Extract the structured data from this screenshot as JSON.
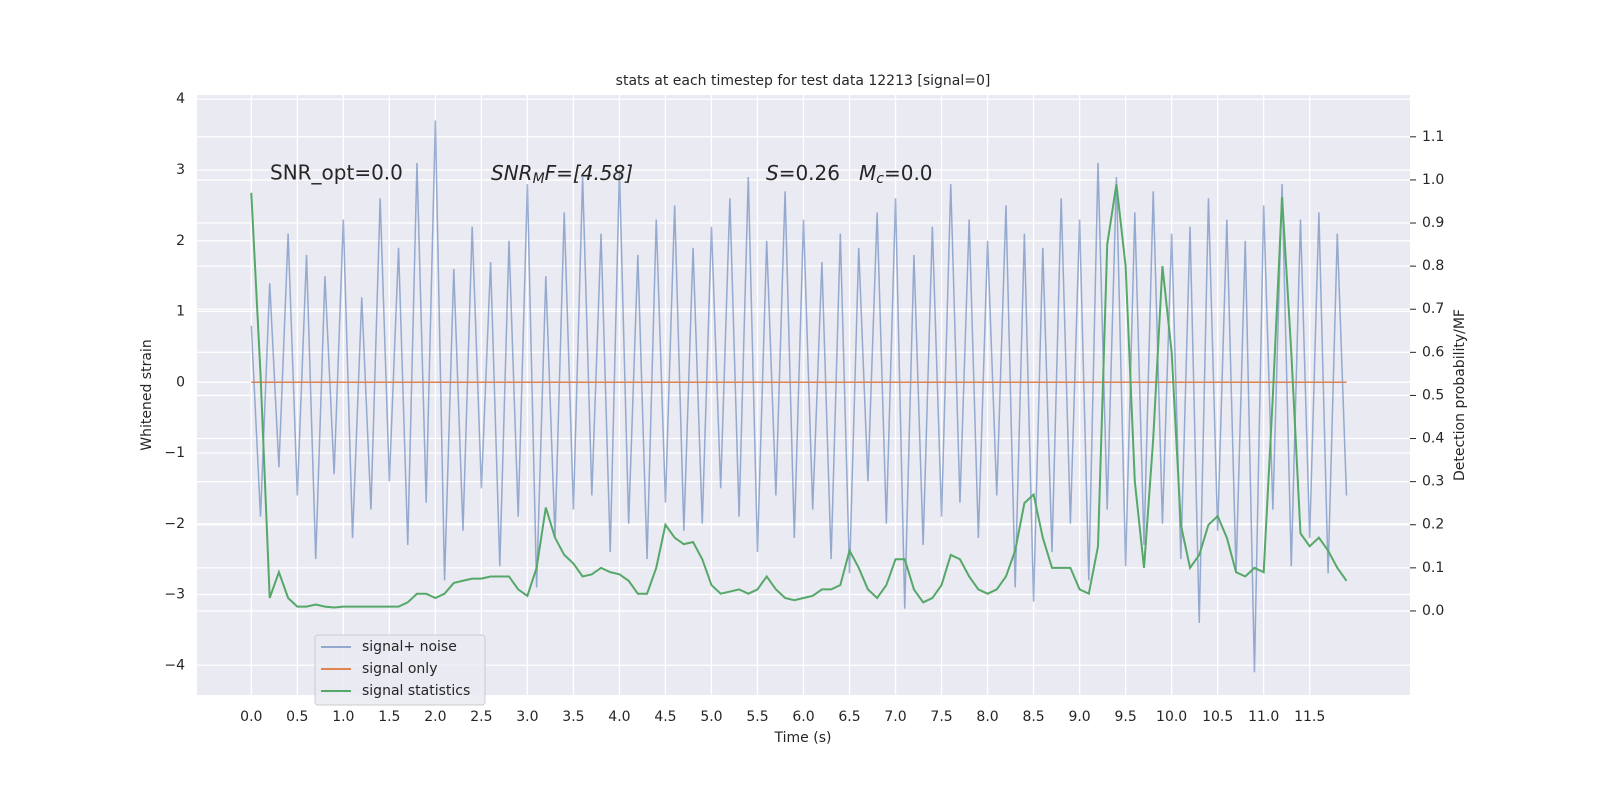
{
  "chart_data": {
    "type": "line",
    "title": "stats at each timestep for test data 12213 [signal=0]",
    "xlabel": "Time (s)",
    "ylabel": "Whitened strain",
    "y2label": "Detection probability/MF",
    "annotations": {
      "snr_opt": "SNR_opt=0.0",
      "snr_mf": [
        "SNR",
        "M",
        "F=[4.58]"
      ],
      "s": [
        "S",
        "=0.26"
      ],
      "mc": [
        "M",
        "c",
        "=0.0"
      ]
    },
    "x": [
      0.0,
      0.1,
      0.2,
      0.3,
      0.4,
      0.5,
      0.6,
      0.7,
      0.8,
      0.9,
      1.0,
      1.1,
      1.2,
      1.3,
      1.4,
      1.5,
      1.6,
      1.7,
      1.8,
      1.9,
      2.0,
      2.1,
      2.2,
      2.3,
      2.4,
      2.5,
      2.6,
      2.7,
      2.8,
      2.9,
      3.0,
      3.1,
      3.2,
      3.3,
      3.4,
      3.5,
      3.6,
      3.7,
      3.8,
      3.9,
      4.0,
      4.1,
      4.2,
      4.3,
      4.4,
      4.5,
      4.6,
      4.7,
      4.8,
      4.9,
      5.0,
      5.1,
      5.2,
      5.3,
      5.4,
      5.5,
      5.6,
      5.7,
      5.8,
      5.9,
      6.0,
      6.1,
      6.2,
      6.3,
      6.4,
      6.5,
      6.6,
      6.7,
      6.8,
      6.9,
      7.0,
      7.1,
      7.2,
      7.3,
      7.4,
      7.5,
      7.6,
      7.7,
      7.8,
      7.9,
      8.0,
      8.1,
      8.2,
      8.3,
      8.4,
      8.5,
      8.6,
      8.7,
      8.8,
      8.9,
      9.0,
      9.1,
      9.2,
      9.3,
      9.4,
      9.5,
      9.6,
      9.7,
      9.8,
      9.9,
      10.0,
      10.1,
      10.2,
      10.3,
      10.4,
      10.5,
      10.6,
      10.7,
      10.8,
      10.9,
      11.0,
      11.1,
      11.2,
      11.3,
      11.4,
      11.5,
      11.6,
      11.7,
      11.8,
      11.9
    ],
    "series": [
      {
        "name": "signal+ noise",
        "color": "#4c72b0",
        "values": [
          0.8,
          -1.9,
          1.4,
          -1.2,
          2.1,
          -1.6,
          1.8,
          -2.5,
          1.5,
          -1.3,
          2.3,
          -2.2,
          1.2,
          -1.8,
          2.6,
          -1.4,
          1.9,
          -2.3,
          3.1,
          -1.7,
          3.7,
          -2.8,
          1.6,
          -2.1,
          2.2,
          -1.5,
          1.7,
          -2.6,
          2.0,
          -1.9,
          2.8,
          -2.9,
          1.5,
          -2.2,
          2.4,
          -1.8,
          2.9,
          -1.6,
          2.1,
          -2.4,
          3.0,
          -2.0,
          1.8,
          -2.5,
          2.3,
          -1.7,
          2.5,
          -2.1,
          1.9,
          -2.0,
          2.2,
          -1.5,
          2.6,
          -1.9,
          2.9,
          -2.4,
          2.0,
          -1.6,
          2.7,
          -2.2,
          2.3,
          -1.8,
          1.7,
          -2.5,
          2.1,
          -2.7,
          1.9,
          -1.4,
          2.4,
          -2.0,
          2.6,
          -3.2,
          1.8,
          -2.3,
          2.2,
          -1.9,
          2.8,
          -1.7,
          2.3,
          -2.2,
          2.0,
          -1.6,
          2.5,
          -2.9,
          2.1,
          -3.1,
          1.9,
          -2.4,
          2.6,
          -2.0,
          2.3,
          -2.8,
          3.1,
          -1.8,
          2.9,
          -2.6,
          2.4,
          -2.3,
          2.7,
          -2.0,
          2.1,
          -2.5,
          2.2,
          -3.4,
          2.6,
          -2.1,
          2.3,
          -2.7,
          2.0,
          -4.1,
          2.5,
          -1.8,
          2.8,
          -2.6,
          2.3,
          -2.2,
          2.4,
          -2.7,
          2.1,
          -1.6
        ]
      },
      {
        "name": "signal only",
        "color": "#dd8452",
        "values": [
          0,
          0,
          0,
          0,
          0,
          0,
          0,
          0,
          0,
          0,
          0,
          0,
          0,
          0,
          0,
          0,
          0,
          0,
          0,
          0,
          0,
          0,
          0,
          0,
          0,
          0,
          0,
          0,
          0,
          0,
          0,
          0,
          0,
          0,
          0,
          0,
          0,
          0,
          0,
          0,
          0,
          0,
          0,
          0,
          0,
          0,
          0,
          0,
          0,
          0,
          0,
          0,
          0,
          0,
          0,
          0,
          0,
          0,
          0,
          0,
          0,
          0,
          0,
          0,
          0,
          0,
          0,
          0,
          0,
          0,
          0,
          0,
          0,
          0,
          0,
          0,
          0,
          0,
          0,
          0,
          0,
          0,
          0,
          0,
          0,
          0,
          0,
          0,
          0,
          0,
          0,
          0,
          0,
          0,
          0,
          0,
          0,
          0,
          0,
          0,
          0,
          0,
          0,
          0,
          0,
          0,
          0,
          0,
          0,
          0,
          0,
          0,
          0,
          0,
          0,
          0,
          0,
          0,
          0,
          0
        ]
      },
      {
        "name": "signal statistics",
        "color": "#55a868",
        "axis": "y2",
        "values": [
          0.97,
          0.55,
          0.03,
          0.09,
          0.03,
          0.01,
          0.01,
          0.015,
          0.01,
          0.008,
          0.01,
          0.01,
          0.01,
          0.01,
          0.01,
          0.01,
          0.01,
          0.02,
          0.04,
          0.04,
          0.03,
          0.04,
          0.065,
          0.07,
          0.075,
          0.075,
          0.08,
          0.08,
          0.08,
          0.05,
          0.035,
          0.1,
          0.24,
          0.17,
          0.13,
          0.11,
          0.08,
          0.085,
          0.1,
          0.09,
          0.085,
          0.07,
          0.04,
          0.04,
          0.1,
          0.2,
          0.17,
          0.155,
          0.16,
          0.12,
          0.06,
          0.04,
          0.045,
          0.05,
          0.04,
          0.05,
          0.08,
          0.05,
          0.03,
          0.025,
          0.03,
          0.035,
          0.05,
          0.05,
          0.06,
          0.14,
          0.1,
          0.05,
          0.03,
          0.06,
          0.12,
          0.12,
          0.05,
          0.02,
          0.03,
          0.06,
          0.13,
          0.12,
          0.08,
          0.05,
          0.04,
          0.05,
          0.08,
          0.14,
          0.25,
          0.27,
          0.17,
          0.1,
          0.1,
          0.1,
          0.05,
          0.04,
          0.15,
          0.85,
          0.99,
          0.8,
          0.3,
          0.1,
          0.4,
          0.8,
          0.6,
          0.2,
          0.1,
          0.13,
          0.2,
          0.22,
          0.17,
          0.09,
          0.08,
          0.1,
          0.09,
          0.5,
          0.96,
          0.6,
          0.18,
          0.15,
          0.17,
          0.14,
          0.1,
          0.07
        ]
      }
    ],
    "xlim": [
      -0.59,
      12.59
    ],
    "xticks": [
      {
        "value": 0,
        "label": "0.0"
      },
      0.5,
      {
        "value": 1,
        "label": "1.0"
      },
      1.5,
      {
        "value": 2,
        "label": "2.0"
      },
      2.5,
      {
        "value": 3,
        "label": "3.0"
      },
      3.5,
      {
        "value": 4,
        "label": "4.0"
      },
      4.5,
      {
        "value": 5,
        "label": "5.0"
      },
      5.5,
      {
        "value": 6,
        "label": "6.0"
      },
      6.5,
      {
        "value": 7,
        "label": "7.0"
      },
      7.5,
      {
        "value": 8,
        "label": "8.0"
      },
      8.5,
      {
        "value": 9,
        "label": "9.0"
      },
      9.5,
      {
        "value": 10,
        "label": "10.0"
      },
      10.5,
      {
        "value": 11,
        "label": "11.0"
      },
      11.5
    ],
    "ylim": [
      -4.42,
      4.06
    ],
    "yticks": [
      {
        "value": -4,
        "label": "−4"
      },
      {
        "value": -3,
        "label": "−3"
      },
      {
        "value": -2,
        "label": "−2"
      },
      {
        "value": -1,
        "label": "−1"
      },
      0,
      1,
      2,
      3,
      4
    ],
    "y2lim": [
      -0.195,
      1.197
    ],
    "y2ticks": [
      {
        "value": 0,
        "label": "0.0"
      },
      0.1,
      0.2,
      0.3,
      0.4,
      0.5,
      0.6,
      0.7,
      0.8,
      0.9,
      {
        "value": 1,
        "label": "1.0"
      },
      1.1
    ],
    "grid": true,
    "legend": "lower left"
  }
}
